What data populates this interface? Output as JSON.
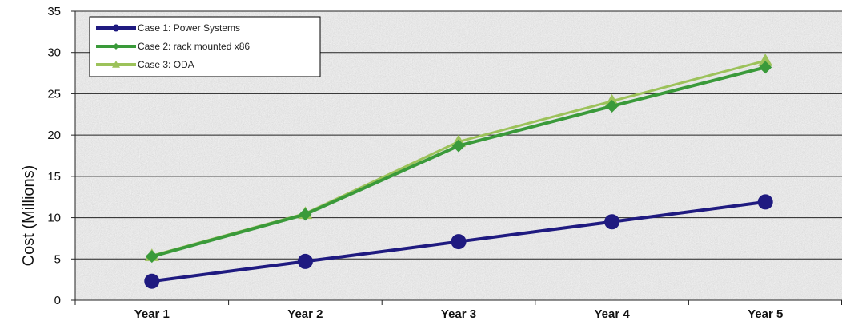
{
  "chart_data": {
    "type": "line",
    "title": "",
    "xlabel": "",
    "ylabel": "Cost (Millions)",
    "categories": [
      "Year 1",
      "Year 2",
      "Year 3",
      "Year 4",
      "Year 5"
    ],
    "ylim": [
      0,
      35
    ],
    "yticks": [
      0,
      5,
      10,
      15,
      20,
      25,
      30,
      35
    ],
    "grid": true,
    "legend_position": "top-left",
    "series": [
      {
        "name": "Case 1: Power Systems",
        "values": [
          2.3,
          4.7,
          7.1,
          9.5,
          11.9
        ],
        "color": "#1f1a80",
        "marker": "circle"
      },
      {
        "name": "Case 2: rack mounted x86",
        "values": [
          5.3,
          10.4,
          18.7,
          23.5,
          28.2
        ],
        "color": "#3a9a3a",
        "marker": "diamond"
      },
      {
        "name": "Case 3: ODA",
        "values": [
          5.4,
          10.5,
          19.2,
          24.1,
          29.0
        ],
        "color": "#9cc25a",
        "marker": "triangle"
      }
    ]
  }
}
